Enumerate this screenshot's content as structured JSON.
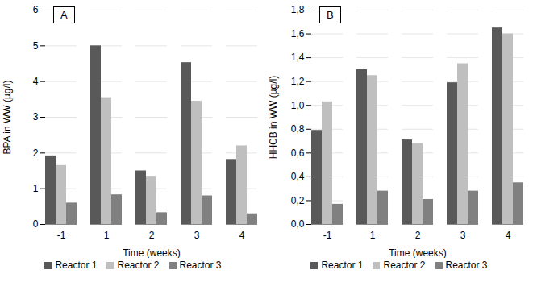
{
  "chart_data": [
    {
      "type": "bar",
      "annotations": [
        "A"
      ],
      "x_label": "Time (weeks)",
      "y_label": "BPA in WW (µg/l)",
      "categories": [
        "-1",
        "1",
        "2",
        "3",
        "4"
      ],
      "series": [
        {
          "name": "Reactor 1",
          "color": "#595959",
          "values": [
            1.92,
            5.0,
            1.5,
            4.53,
            1.82
          ]
        },
        {
          "name": "Reactor 2",
          "color": "#bfbfbf",
          "values": [
            1.65,
            3.55,
            1.35,
            3.45,
            2.2
          ]
        },
        {
          "name": "Reactor 3",
          "color": "#808080",
          "values": [
            0.6,
            0.83,
            0.33,
            0.8,
            0.3
          ]
        }
      ],
      "ylim": [
        0,
        6
      ],
      "yticks": [
        0,
        1,
        2,
        3,
        4,
        5,
        6
      ],
      "grid": true,
      "legend": "bottom"
    },
    {
      "type": "bar",
      "annotations": [
        "B"
      ],
      "x_label": "Time (weeks)",
      "y_label": "HHCB in WW (µg/l)",
      "categories": [
        "-1",
        "1",
        "2",
        "3",
        "4"
      ],
      "series": [
        {
          "name": "Reactor 1",
          "color": "#595959",
          "values": [
            0.79,
            1.3,
            0.71,
            1.19,
            1.65
          ]
        },
        {
          "name": "Reactor 2",
          "color": "#bfbfbf",
          "values": [
            1.03,
            1.25,
            0.68,
            1.35,
            1.6
          ]
        },
        {
          "name": "Reactor 3",
          "color": "#808080",
          "values": [
            0.17,
            0.28,
            0.21,
            0.28,
            0.35
          ]
        }
      ],
      "ylim": [
        0,
        1.8
      ],
      "yticks": [
        {
          "value": 0,
          "label": "0,0"
        },
        {
          "value": 0.2,
          "label": "0,2"
        },
        {
          "value": 0.4,
          "label": "0,4"
        },
        {
          "value": 0.6,
          "label": "0,6"
        },
        {
          "value": 0.8,
          "label": "0,8"
        },
        {
          "value": 1.0,
          "label": "1,0"
        },
        {
          "value": 1.2,
          "label": "1,2"
        },
        {
          "value": 1.4,
          "label": "1,4"
        },
        {
          "value": 1.6,
          "label": "1,6"
        },
        {
          "value": 1.8,
          "label": "1,8"
        }
      ],
      "grid": true,
      "legend": "bottom"
    }
  ]
}
